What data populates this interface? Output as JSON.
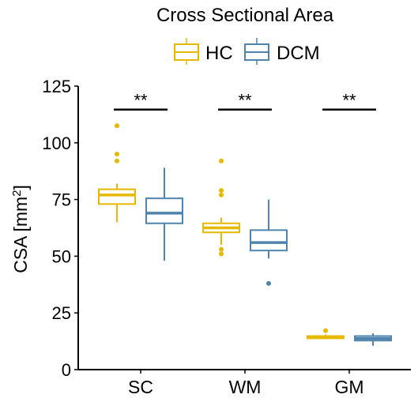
{
  "chart_data": {
    "type": "box",
    "title": "Cross Sectional Area",
    "ylabel": "CSA [mm",
    "ylabel_sup": "2",
    "ylabel_close": "]",
    "xlabel": "",
    "ylim": [
      0,
      125
    ],
    "yticks": [
      0,
      25,
      50,
      75,
      100,
      125
    ],
    "categories": [
      "SC",
      "WM",
      "GM"
    ],
    "legend_position": "top",
    "grid": false,
    "series": [
      {
        "name": "HC",
        "color": "#E7B800",
        "boxes": [
          {
            "category": "SC",
            "whisker_low": 65,
            "q1": 73,
            "median": 77,
            "q3": 79.5,
            "whisker_high": 82,
            "outliers": [
              107.5,
              95,
              92
            ]
          },
          {
            "category": "WM",
            "whisker_low": 55,
            "q1": 60.5,
            "median": 62.5,
            "q3": 64.5,
            "whisker_high": 67,
            "outliers": [
              92,
              79,
              77,
              53,
              51
            ]
          },
          {
            "category": "GM",
            "whisker_low": 13.5,
            "q1": 13.8,
            "median": 14.3,
            "q3": 14.8,
            "whisker_high": 15.5,
            "outliers": [
              17.2
            ]
          }
        ]
      },
      {
        "name": "DCM",
        "color": "#4E84AD",
        "boxes": [
          {
            "category": "SC",
            "whisker_low": 48,
            "q1": 64.5,
            "median": 69,
            "q3": 75.5,
            "whisker_high": 89,
            "outliers": []
          },
          {
            "category": "WM",
            "whisker_low": 49,
            "q1": 52.5,
            "median": 56,
            "q3": 61.5,
            "whisker_high": 75,
            "outliers": [
              38
            ]
          },
          {
            "category": "GM",
            "whisker_low": 10.5,
            "q1": 12.8,
            "median": 13.7,
            "q3": 14.8,
            "whisker_high": 16,
            "outliers": []
          }
        ]
      }
    ],
    "significance": [
      {
        "category": "SC",
        "label": "**",
        "y": 115
      },
      {
        "category": "WM",
        "label": "**",
        "y": 115
      },
      {
        "category": "GM",
        "label": "**",
        "y": 115
      }
    ]
  }
}
